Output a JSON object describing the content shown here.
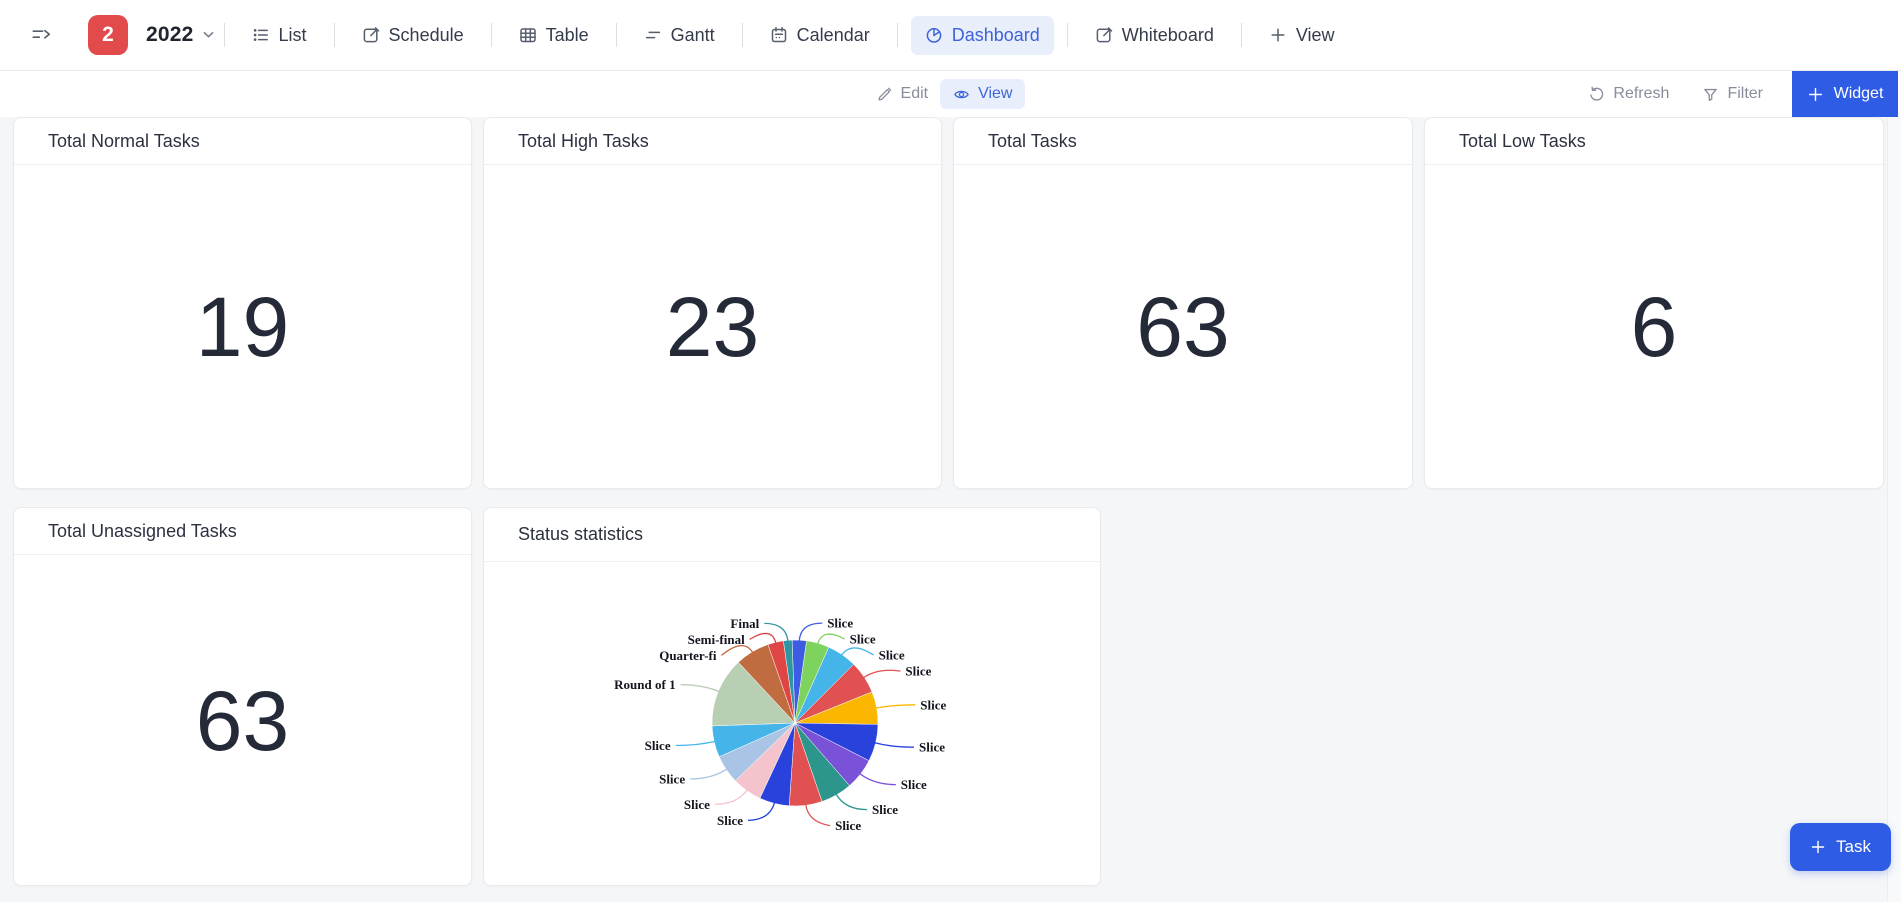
{
  "nav": {
    "sidebar_badge": "2",
    "workspace_name": "2022",
    "tabs": [
      {
        "label": "List"
      },
      {
        "label": "Schedule"
      },
      {
        "label": "Table"
      },
      {
        "label": "Gantt"
      },
      {
        "label": "Calendar"
      },
      {
        "label": "Dashboard",
        "active": true
      },
      {
        "label": "Whiteboard"
      },
      {
        "label": "View"
      }
    ]
  },
  "toolbar": {
    "edit": "Edit",
    "view": "View",
    "refresh": "Refresh",
    "filter": "Filter",
    "widget": "Widget"
  },
  "stat_cards": [
    {
      "title": "Total Normal Tasks",
      "value": "19"
    },
    {
      "title": "Total High Tasks",
      "value": "23"
    },
    {
      "title": "Total Tasks",
      "value": "63"
    },
    {
      "title": "Total Low Tasks",
      "value": "6"
    },
    {
      "title": "Total Unassigned Tasks",
      "value": "63"
    }
  ],
  "chart_card": {
    "title": "Status statistics"
  },
  "floating": {
    "task_button": "Task"
  },
  "colors": {
    "accent_blue": "#2e5ce5",
    "badge_red": "#e14b4b",
    "active_tab_text": "#3e63d9",
    "active_tab_bg": "#e9eefb",
    "page_bg": "#f5f6f8"
  },
  "chart_data": {
    "type": "pie",
    "title": "Status statistics",
    "legend": "none",
    "labels_shown": true,
    "start_angle_deg": -2,
    "slices": [
      {
        "label": "Slice",
        "angle_deg": 10,
        "color": "#3e5be4"
      },
      {
        "label": "Slice",
        "angle_deg": 16,
        "color": "#7ed25e"
      },
      {
        "label": "Slice",
        "angle_deg": 21,
        "color": "#45b4e8"
      },
      {
        "label": "Slice",
        "angle_deg": 23,
        "color": "#e25151"
      },
      {
        "label": "Slice",
        "angle_deg": 23,
        "color": "#fbb700"
      },
      {
        "label": "Slice",
        "angle_deg": 26,
        "color": "#2942dc"
      },
      {
        "label": "Slice",
        "angle_deg": 22,
        "color": "#7a52d8"
      },
      {
        "label": "Slice",
        "angle_deg": 22,
        "color": "#2d968c"
      },
      {
        "label": "Slice",
        "angle_deg": 23,
        "color": "#e25151"
      },
      {
        "label": "Slice",
        "angle_deg": 21,
        "color": "#2942dc"
      },
      {
        "label": "Slice",
        "angle_deg": 21,
        "color": "#f4c3cb"
      },
      {
        "label": "Slice",
        "angle_deg": 20,
        "color": "#a9c4e4"
      },
      {
        "label": "Slice",
        "angle_deg": 22,
        "color": "#45b4e8"
      },
      {
        "label": "Round of 1",
        "angle_deg": 49,
        "color": "#b8cfb3"
      },
      {
        "label": "Quarter-fi",
        "angle_deg": 24,
        "color": "#c06b40"
      },
      {
        "label": "Semi-final",
        "angle_deg": 11,
        "color": "#e04545"
      },
      {
        "label": "Final",
        "angle_deg": 6,
        "color": "#2d96a0"
      }
    ]
  }
}
